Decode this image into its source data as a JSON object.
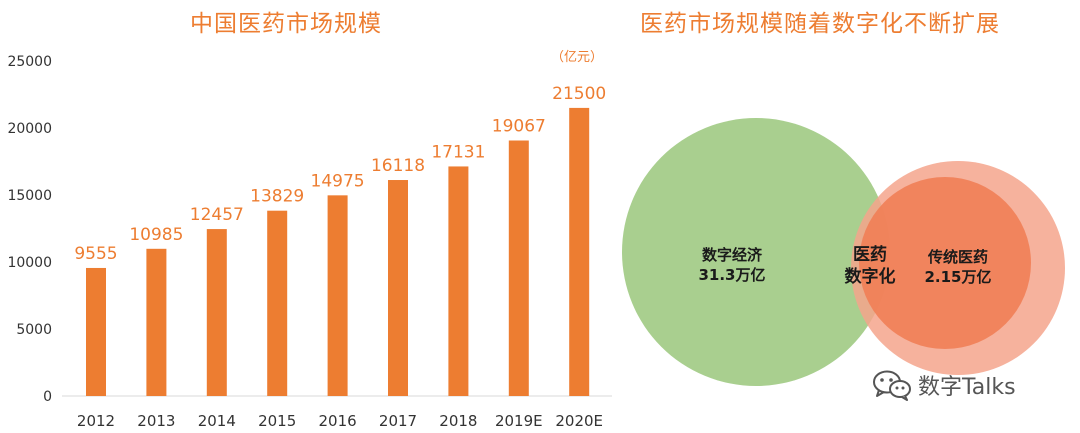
{
  "left_title": "中国医药市场规模",
  "right_title": "医药市场规模随着数字化不断扩展",
  "unit": "（亿元）",
  "colors": {
    "bar": "#ED7D31",
    "label": "#ED7D31",
    "axis_text": "#333333",
    "green_circle": "#A9CF8F",
    "salmon_circle": "#F4A48C",
    "inner_circle": "#F07D54"
  },
  "chart_data": {
    "type": "bar",
    "categories": [
      "2012",
      "2013",
      "2014",
      "2015",
      "2016",
      "2017",
      "2018",
      "2019E",
      "2020E"
    ],
    "values": [
      9555,
      10985,
      12457,
      13829,
      14975,
      16118,
      17131,
      19067,
      21500
    ],
    "ylim": [
      0,
      25000
    ],
    "yticks": [
      0,
      5000,
      10000,
      15000,
      20000,
      25000
    ],
    "grid": false,
    "data_labels": true
  },
  "venn": {
    "digital_economy": {
      "label": "数字经济",
      "value": "31.3万亿"
    },
    "overlap": {
      "line1": "医药",
      "line2": "数字化"
    },
    "traditional": {
      "label": "传统医药",
      "value": "2.15万亿"
    }
  },
  "watermark": {
    "text": "数字Talks",
    "icon": "wechat-icon"
  }
}
